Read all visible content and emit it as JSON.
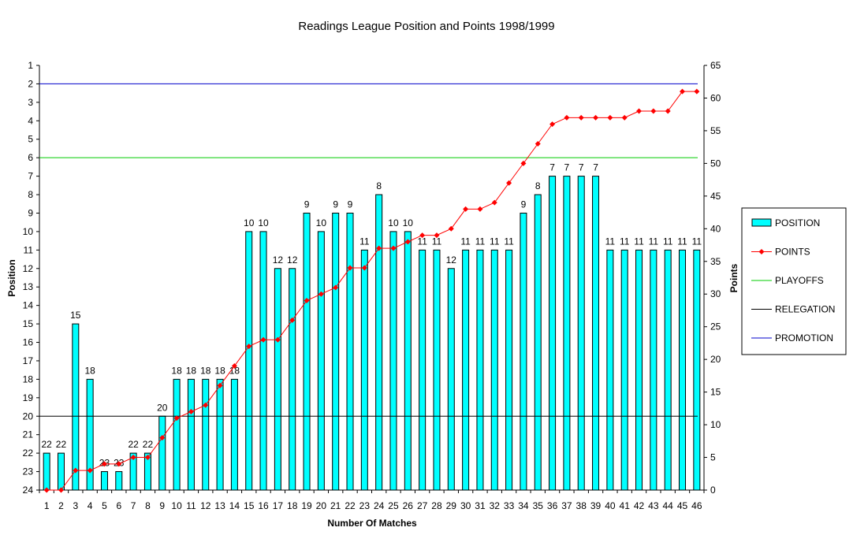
{
  "chart_data": {
    "type": "bar",
    "title": "Readings League Position and Points 1998/1999",
    "xlabel": "Number Of Matches",
    "ylabel": "Position",
    "y2label": "Points",
    "x": [
      1,
      2,
      3,
      4,
      5,
      6,
      7,
      8,
      9,
      10,
      11,
      12,
      13,
      14,
      15,
      16,
      17,
      18,
      19,
      20,
      21,
      22,
      23,
      24,
      25,
      26,
      27,
      28,
      29,
      30,
      31,
      32,
      33,
      34,
      35,
      36,
      37,
      38,
      39,
      40,
      41,
      42,
      43,
      44,
      45,
      46
    ],
    "y_axis": {
      "min": 1,
      "max": 24,
      "reversed": true,
      "ticks": [
        1,
        2,
        3,
        4,
        5,
        6,
        7,
        8,
        9,
        10,
        11,
        12,
        13,
        14,
        15,
        16,
        17,
        18,
        19,
        20,
        21,
        22,
        23,
        24
      ]
    },
    "y2_axis": {
      "min": 0,
      "max": 65,
      "ticks": [
        0,
        5,
        10,
        15,
        20,
        25,
        30,
        35,
        40,
        45,
        50,
        55,
        60,
        65
      ]
    },
    "series": [
      {
        "name": "POSITION",
        "kind": "bar",
        "color": "#00FFFF",
        "values": [
          22,
          22,
          15,
          18,
          23,
          23,
          22,
          22,
          20,
          18,
          18,
          18,
          18,
          18,
          10,
          10,
          12,
          12,
          9,
          10,
          9,
          9,
          11,
          8,
          10,
          10,
          11,
          11,
          12,
          11,
          11,
          11,
          11,
          9,
          8,
          7,
          7,
          7,
          7,
          11,
          11,
          11,
          11,
          11,
          11,
          11
        ]
      },
      {
        "name": "POINTS",
        "kind": "line",
        "axis": "secondary",
        "color": "#FF0000",
        "values": [
          0,
          0,
          3,
          3,
          4,
          4,
          5,
          5,
          8,
          11,
          12,
          13,
          16,
          19,
          22,
          23,
          23,
          26,
          29,
          30,
          31,
          34,
          34,
          37,
          37,
          38,
          39,
          39,
          40,
          43,
          43,
          44,
          47,
          50,
          53,
          56,
          57,
          57,
          57,
          57,
          57,
          58,
          58,
          58,
          61,
          61
        ]
      },
      {
        "name": "PLAYOFFS",
        "kind": "hline",
        "color": "#00CC00",
        "value": 6
      },
      {
        "name": "RELEGATION",
        "kind": "hline",
        "color": "#000000",
        "value": 20
      },
      {
        "name": "PROMOTION",
        "kind": "hline",
        "color": "#0000CC",
        "value": 2
      }
    ],
    "legend": {
      "position": "right",
      "entries": [
        {
          "label": "POSITION",
          "symbol": "bar",
          "color": "#00FFFF"
        },
        {
          "label": "POINTS",
          "symbol": "line-marker",
          "color": "#FF0000"
        },
        {
          "label": "PLAYOFFS",
          "symbol": "line",
          "color": "#00CC00"
        },
        {
          "label": "RELEGATION",
          "symbol": "line",
          "color": "#000000"
        },
        {
          "label": "PROMOTION",
          "symbol": "line",
          "color": "#0000CC"
        }
      ]
    },
    "grid": false
  }
}
